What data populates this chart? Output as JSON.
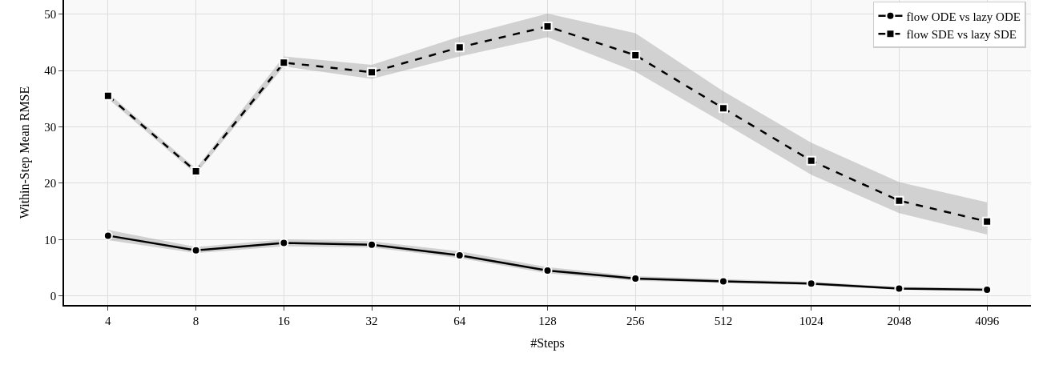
{
  "chart_data": {
    "type": "line",
    "xlabel": "#Steps",
    "ylabel": "Within-Step Mean RMSE",
    "categories": [
      "4",
      "8",
      "16",
      "32",
      "64",
      "128",
      "256",
      "512",
      "1024",
      "2048",
      "4096"
    ],
    "ylim": [
      -1.6,
      52.5
    ],
    "yticks": [
      0,
      10,
      20,
      30,
      40,
      50
    ],
    "grid": true,
    "legend": "top right",
    "series": [
      {
        "name": "flow ODE vs lazy ODE",
        "color": "#000000",
        "marker": "circle",
        "line_style": "solid",
        "values": [
          10.7,
          8.1,
          9.4,
          9.1,
          7.2,
          4.5,
          3.1,
          2.6,
          2.2,
          1.3,
          1.1
        ],
        "lower": [
          9.9,
          7.6,
          8.8,
          8.6,
          6.7,
          4.0,
          2.7,
          2.3,
          1.9,
          1.1,
          0.9
        ],
        "upper": [
          11.7,
          8.7,
          10.0,
          9.7,
          7.9,
          5.1,
          3.5,
          3.0,
          2.5,
          1.6,
          1.4
        ]
      },
      {
        "name": "flow SDE vs lazy SDE",
        "color": "#000000",
        "marker": "square",
        "line_style": "dashed",
        "values": [
          35.5,
          22.1,
          41.4,
          39.7,
          44.1,
          47.8,
          42.7,
          33.3,
          24.0,
          16.9,
          13.2
        ],
        "lower": [
          35.0,
          21.6,
          40.7,
          38.5,
          42.5,
          45.9,
          39.8,
          30.7,
          21.5,
          14.7,
          10.9
        ],
        "upper": [
          36.0,
          22.6,
          42.5,
          41.0,
          46.0,
          50.1,
          46.6,
          36.3,
          27.2,
          20.2,
          16.6
        ]
      }
    ]
  }
}
